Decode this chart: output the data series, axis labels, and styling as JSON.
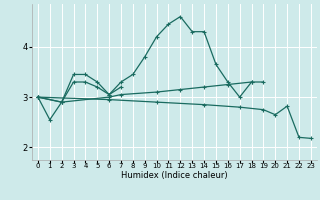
{
  "xlabel": "Humidex (Indice chaleur)",
  "bg_color": "#ceeaea",
  "grid_color": "#ffffff",
  "line_color": "#1a6b60",
  "xlim": [
    -0.5,
    23.5
  ],
  "ylim": [
    1.75,
    4.85
  ],
  "yticks": [
    2,
    3,
    4
  ],
  "xticks": [
    0,
    1,
    2,
    3,
    4,
    5,
    6,
    7,
    8,
    9,
    10,
    11,
    12,
    13,
    14,
    15,
    16,
    17,
    18,
    19,
    20,
    21,
    22,
    23
  ],
  "line1": [
    [
      0,
      3.0
    ],
    [
      1,
      2.55
    ],
    [
      2,
      2.9
    ],
    [
      3,
      3.45
    ],
    [
      4,
      3.45
    ],
    [
      5,
      3.3
    ],
    [
      6,
      3.05
    ],
    [
      7,
      3.3
    ],
    [
      8,
      3.45
    ],
    [
      9,
      3.8
    ],
    [
      10,
      4.2
    ],
    [
      11,
      4.45
    ],
    [
      12,
      4.6
    ],
    [
      13,
      4.3
    ],
    [
      14,
      4.3
    ],
    [
      15,
      3.65
    ],
    [
      16,
      3.3
    ],
    [
      17,
      3.0
    ],
    [
      18,
      3.3
    ]
  ],
  "line2": [
    [
      0,
      3.0
    ],
    [
      2,
      2.9
    ],
    [
      3,
      3.3
    ],
    [
      4,
      3.3
    ],
    [
      5,
      3.2
    ],
    [
      6,
      3.05
    ],
    [
      7,
      3.2
    ]
  ],
  "line3": [
    [
      0,
      3.0
    ],
    [
      2,
      2.9
    ],
    [
      6,
      3.0
    ],
    [
      7,
      3.05
    ],
    [
      10,
      3.1
    ],
    [
      12,
      3.15
    ],
    [
      14,
      3.2
    ],
    [
      16,
      3.25
    ],
    [
      18,
      3.3
    ],
    [
      19,
      3.3
    ]
  ],
  "line4": [
    [
      0,
      3.0
    ],
    [
      6,
      2.95
    ],
    [
      10,
      2.9
    ],
    [
      14,
      2.85
    ],
    [
      17,
      2.8
    ],
    [
      19,
      2.75
    ],
    [
      20,
      2.65
    ],
    [
      21,
      2.82
    ],
    [
      22,
      2.2
    ],
    [
      23,
      2.18
    ]
  ]
}
